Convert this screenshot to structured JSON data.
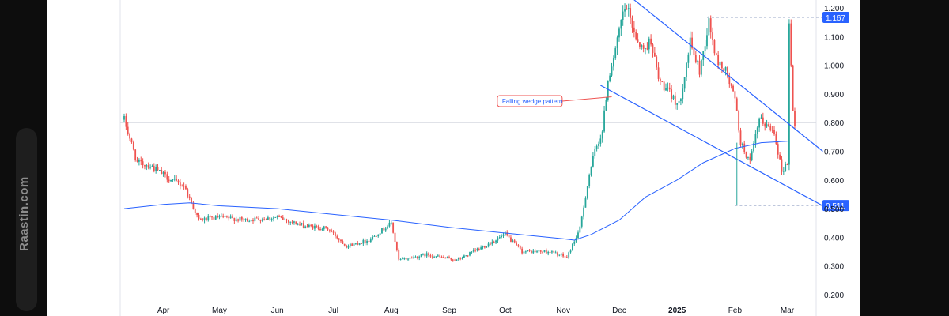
{
  "watermark": {
    "text": "Raastin.com"
  },
  "colors": {
    "up": "#26a69a",
    "down": "#ef5350",
    "ma": "#2962ff",
    "trendline": "#2962ff",
    "badge": "#2962ff",
    "annotation_border": "#ef5350"
  },
  "chart_data": {
    "type": "candlestick",
    "title": "",
    "xlabel": "",
    "ylabel": "",
    "ylim": [
      0.18,
      1.22
    ],
    "grid": false,
    "y_ticks": [
      "0.200",
      "0.300",
      "0.400",
      "0.500",
      "0.600",
      "0.700",
      "0.800",
      "0.900",
      "1.000",
      "1.100",
      "1.200"
    ],
    "x_ticks": [
      {
        "label": "Apr",
        "date": "2024-04-01",
        "bold": false
      },
      {
        "label": "May",
        "date": "2024-05-01",
        "bold": false
      },
      {
        "label": "Jun",
        "date": "2024-06-01",
        "bold": false
      },
      {
        "label": "Jul",
        "date": "2024-07-01",
        "bold": false
      },
      {
        "label": "Aug",
        "date": "2024-08-01",
        "bold": false
      },
      {
        "label": "Sep",
        "date": "2024-09-01",
        "bold": false
      },
      {
        "label": "Oct",
        "date": "2024-10-01",
        "bold": false
      },
      {
        "label": "Nov",
        "date": "2024-11-01",
        "bold": false
      },
      {
        "label": "Dec",
        "date": "2024-12-01",
        "bold": false
      },
      {
        "label": "2025",
        "date": "2025-01-01",
        "bold": true
      },
      {
        "label": "Feb",
        "date": "2025-02-01",
        "bold": false
      },
      {
        "label": "Mar",
        "date": "2025-03-01",
        "bold": false
      }
    ],
    "price_path": [
      [
        "2024-03-11",
        0.81
      ],
      [
        "2024-03-18",
        0.66
      ],
      [
        "2024-03-25",
        0.65
      ],
      [
        "2024-04-05",
        0.6
      ],
      [
        "2024-04-12",
        0.58
      ],
      [
        "2024-04-20",
        0.46
      ],
      [
        "2024-05-01",
        0.47
      ],
      [
        "2024-05-15",
        0.46
      ],
      [
        "2024-06-01",
        0.47
      ],
      [
        "2024-06-15",
        0.44
      ],
      [
        "2024-06-28",
        0.43
      ],
      [
        "2024-07-08",
        0.37
      ],
      [
        "2024-07-20",
        0.39
      ],
      [
        "2024-08-01",
        0.45
      ],
      [
        "2024-08-05",
        0.32
      ],
      [
        "2024-08-20",
        0.34
      ],
      [
        "2024-09-05",
        0.32
      ],
      [
        "2024-09-20",
        0.37
      ],
      [
        "2024-10-01",
        0.41
      ],
      [
        "2024-10-10",
        0.35
      ],
      [
        "2024-10-25",
        0.35
      ],
      [
        "2024-11-03",
        0.33
      ],
      [
        "2024-11-10",
        0.43
      ],
      [
        "2024-11-15",
        0.62
      ],
      [
        "2024-11-18",
        0.7
      ],
      [
        "2024-11-22",
        0.77
      ],
      [
        "2024-11-25",
        0.95
      ],
      [
        "2024-11-30",
        1.08
      ],
      [
        "2024-12-03",
        1.18
      ],
      [
        "2024-12-05",
        1.2
      ],
      [
        "2024-12-10",
        1.1
      ],
      [
        "2024-12-14",
        1.05
      ],
      [
        "2024-12-18",
        1.09
      ],
      [
        "2024-12-22",
        0.95
      ],
      [
        "2024-12-28",
        0.9
      ],
      [
        "2025-01-02",
        0.86
      ],
      [
        "2025-01-08",
        1.08
      ],
      [
        "2025-01-13",
        0.98
      ],
      [
        "2025-01-18",
        1.15
      ],
      [
        "2025-01-22",
        1.02
      ],
      [
        "2025-01-27",
        0.98
      ],
      [
        "2025-02-01",
        0.88
      ],
      [
        "2025-02-04",
        0.73
      ],
      [
        "2025-02-09",
        0.66
      ],
      [
        "2025-02-14",
        0.81
      ],
      [
        "2025-02-18",
        0.79
      ],
      [
        "2025-02-22",
        0.77
      ],
      [
        "2025-02-26",
        0.63
      ],
      [
        "2025-03-01",
        0.66
      ],
      [
        "2025-03-02",
        1.14
      ],
      [
        "2025-03-04",
        0.85
      ],
      [
        "2025-03-05",
        0.79
      ]
    ],
    "series": [
      {
        "name": "",
        "type": "moving_average",
        "points": [
          [
            "2024-03-11",
            0.5
          ],
          [
            "2024-04-01",
            0.515
          ],
          [
            "2024-04-15",
            0.52
          ],
          [
            "2024-05-01",
            0.51
          ],
          [
            "2024-06-01",
            0.5
          ],
          [
            "2024-07-01",
            0.48
          ],
          [
            "2024-08-01",
            0.46
          ],
          [
            "2024-09-01",
            0.435
          ],
          [
            "2024-10-01",
            0.415
          ],
          [
            "2024-11-01",
            0.395
          ],
          [
            "2024-11-07",
            0.39
          ],
          [
            "2024-11-16",
            0.41
          ],
          [
            "2024-12-01",
            0.46
          ],
          [
            "2024-12-15",
            0.54
          ],
          [
            "2025-01-01",
            0.6
          ],
          [
            "2025-01-15",
            0.66
          ],
          [
            "2025-02-01",
            0.71
          ],
          [
            "2025-02-15",
            0.73
          ],
          [
            "2025-03-01",
            0.735
          ]
        ]
      }
    ],
    "trendlines": [
      {
        "name": "upper",
        "from": [
          "2024-12-01",
          1.27
        ],
        "to": [
          "2025-03-20",
          0.7
        ]
      },
      {
        "name": "lower",
        "from": [
          "2024-11-21",
          0.93
        ],
        "to": [
          "2025-03-20",
          0.51
        ]
      }
    ],
    "price_labels": [
      {
        "value": 1.167,
        "text": "1.167",
        "from": "2025-01-17"
      },
      {
        "value": 0.511,
        "text": "0.511",
        "from": "2025-02-01"
      }
    ],
    "reference_line": {
      "value": 0.8
    },
    "annotations": [
      {
        "text": "Falling wedge pattern",
        "anchor": [
          "2024-10-01",
          0.875
        ],
        "points_to": [
          "2024-11-27",
          0.89
        ]
      }
    ]
  }
}
